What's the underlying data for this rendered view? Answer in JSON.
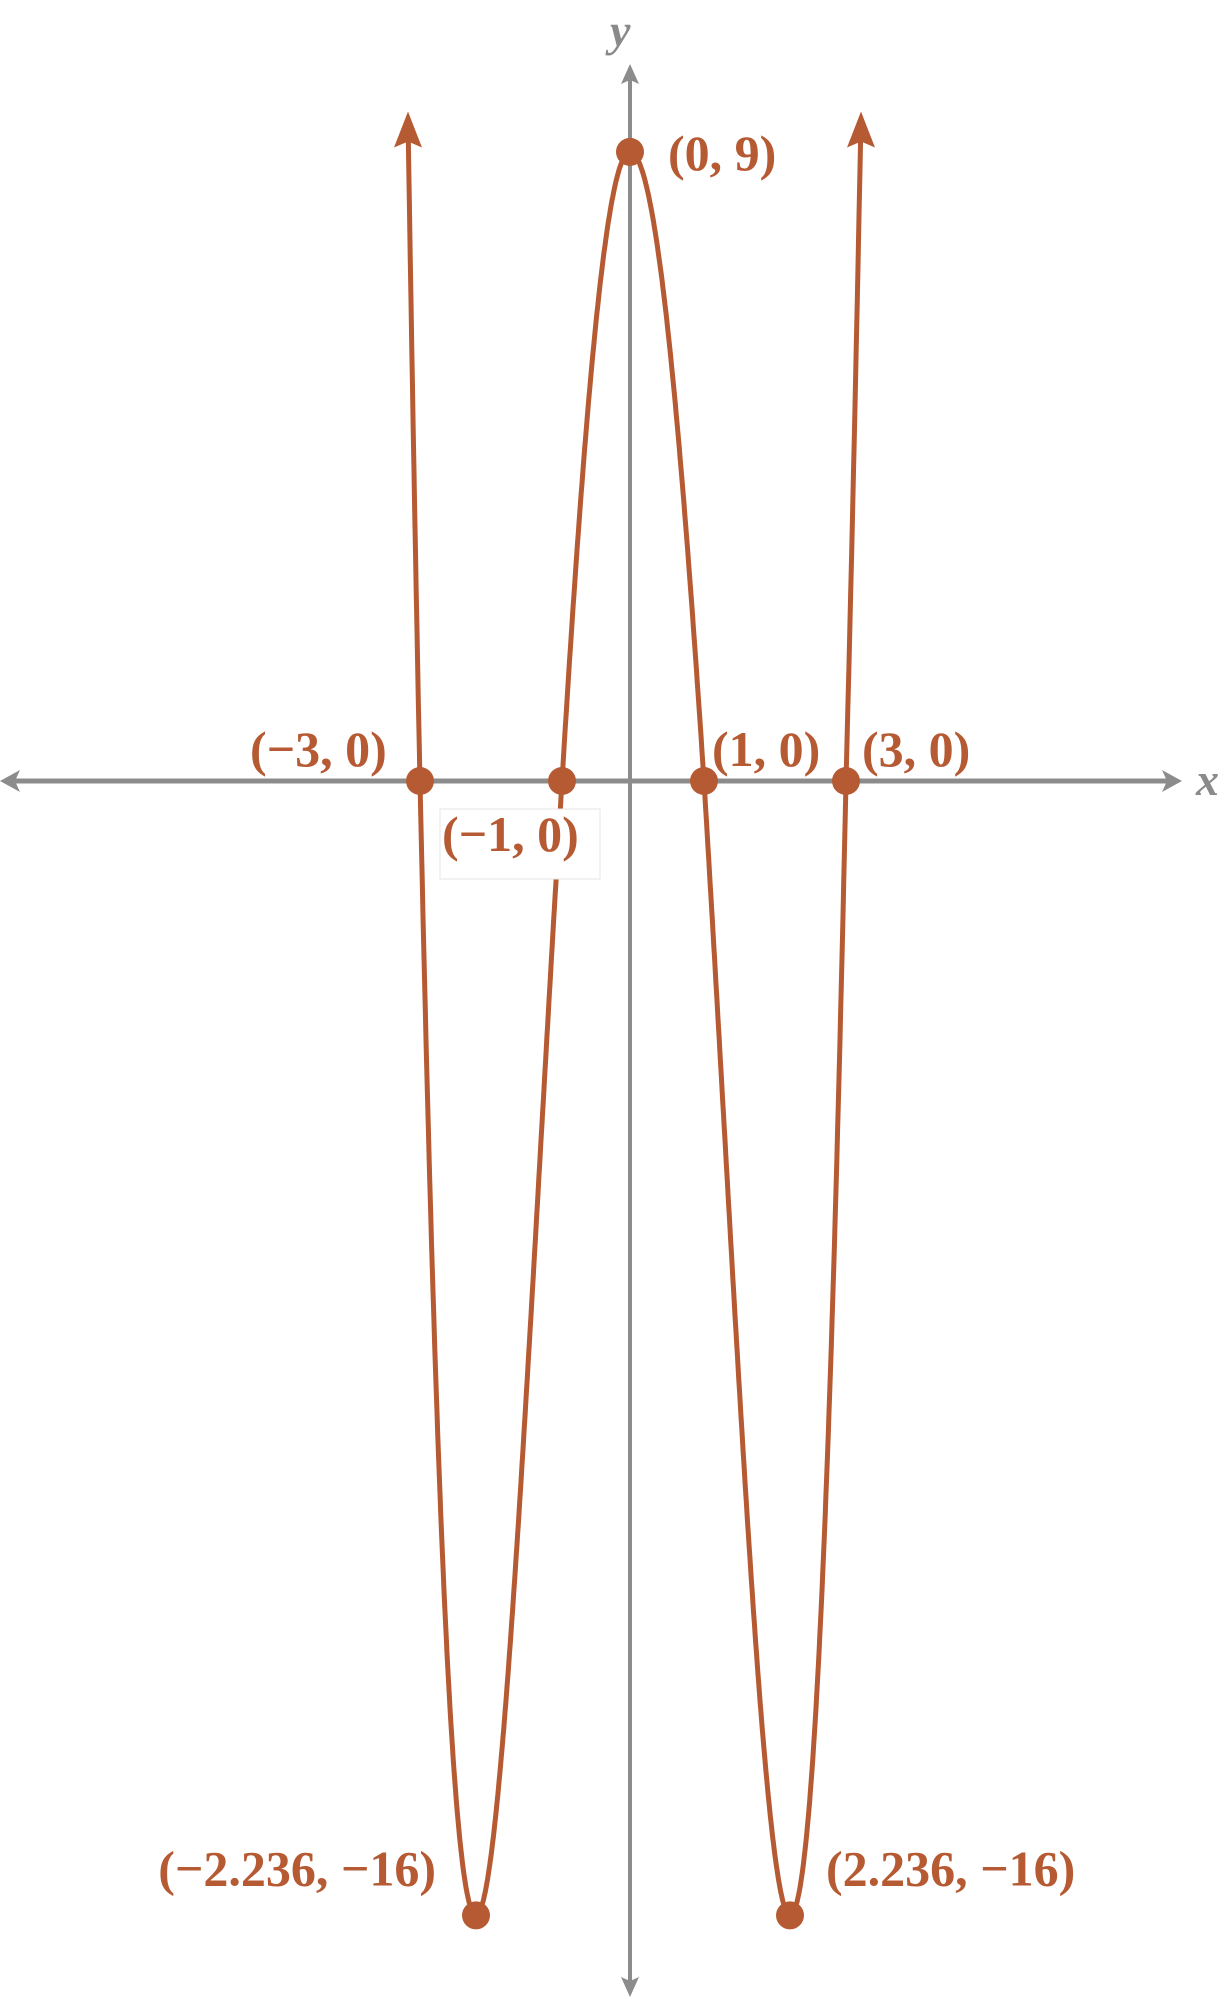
{
  "chart_data": {
    "type": "line",
    "title": "",
    "xlabel": "x",
    "ylabel": "y",
    "grid": false,
    "colors": {
      "curve": "#b55a33",
      "axis": "#8c8c8c"
    },
    "function_points": [
      {
        "x": -3,
        "y": 0,
        "label": "(−3, 0)"
      },
      {
        "x": -1,
        "y": 0,
        "label": "(−1, 0)"
      },
      {
        "x": 1,
        "y": 0,
        "label": "(1, 0)"
      },
      {
        "x": 3,
        "y": 0,
        "label": "(3, 0)"
      },
      {
        "x": 0,
        "y": 9,
        "label": "(0, 9)"
      },
      {
        "x": -2.236,
        "y": -16,
        "label": "(−2.236, −16)"
      },
      {
        "x": 2.236,
        "y": -16,
        "label": "(2.236, −16)"
      }
    ],
    "curve_ends": "arrows-up"
  }
}
